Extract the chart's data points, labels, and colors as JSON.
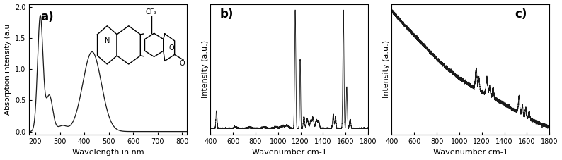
{
  "panel_a": {
    "label": "a)",
    "xlabel": "Wavelength in nm",
    "ylabel": "Absorption intensity (a.u",
    "xlim": [
      175,
      820
    ],
    "ylim": [
      -0.05,
      2.05
    ],
    "yticks": [
      0.0,
      0.5,
      1.0,
      1.5,
      2.0
    ],
    "xticks": [
      200,
      300,
      400,
      500,
      600,
      700,
      800
    ]
  },
  "panel_b": {
    "label": "b)",
    "xlabel": "Wavenumber cm-1",
    "ylabel": "Intensity (a.u.)",
    "xlim": [
      400,
      1800
    ],
    "xticks": [
      400,
      600,
      800,
      1000,
      1200,
      1400,
      1600,
      1800
    ]
  },
  "panel_c": {
    "label": "c)",
    "xlabel": "Wavenumber cm-1",
    "ylabel": "Intensity (a.u.)",
    "xlim": [
      400,
      1800
    ],
    "xticks": [
      400,
      600,
      800,
      1000,
      1200,
      1400,
      1600,
      1800
    ]
  },
  "line_color": "#1a1a1a",
  "background_color": "#ffffff",
  "label_fontsize": 8,
  "tick_fontsize": 7
}
